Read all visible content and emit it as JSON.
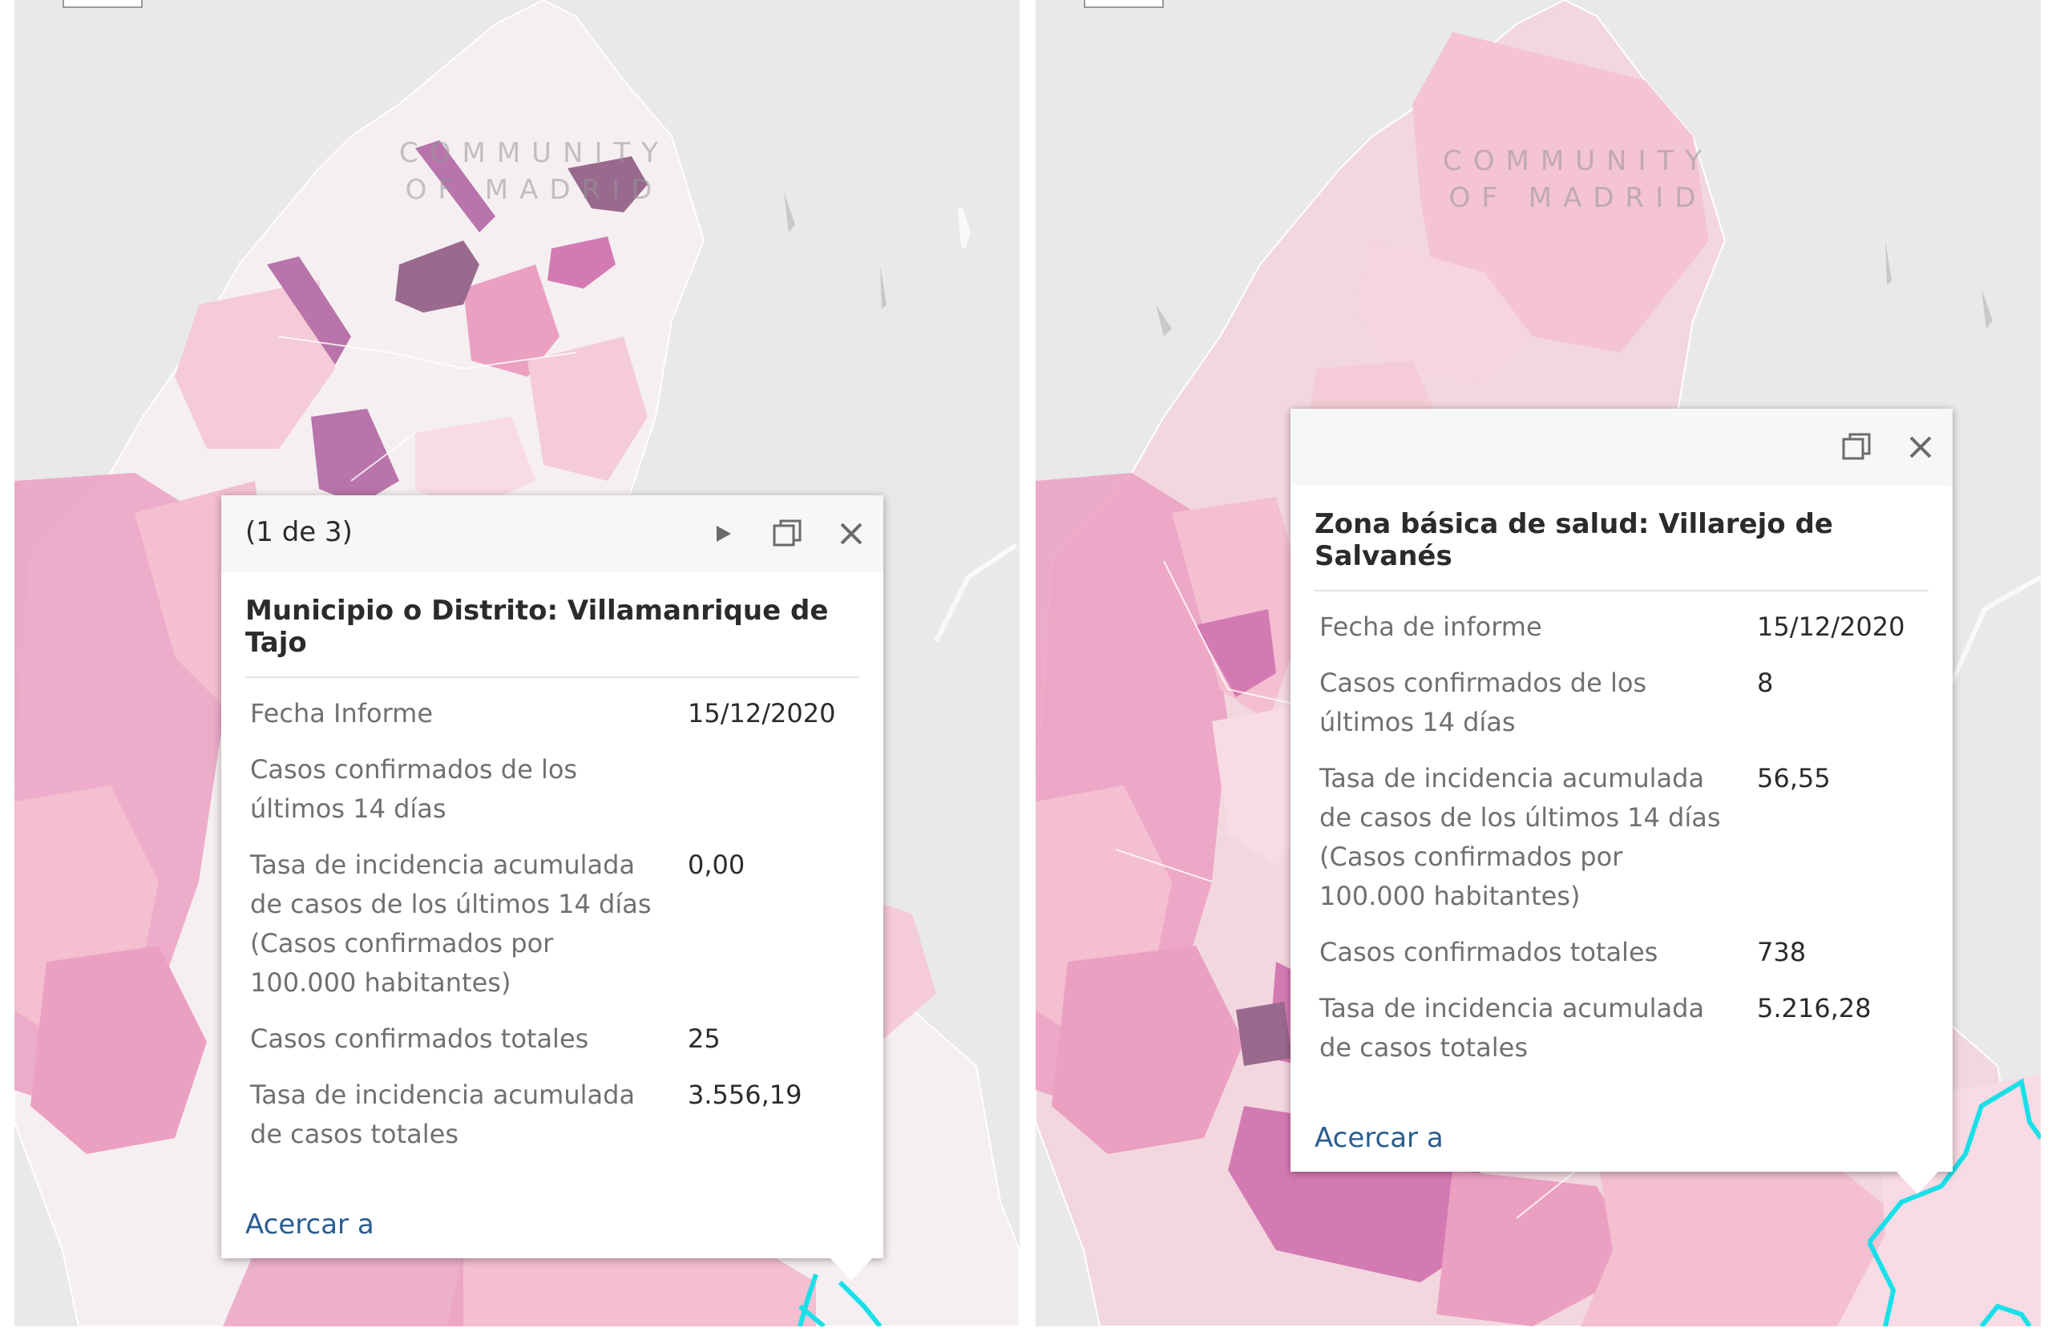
{
  "map": {
    "region_label_line1": "COMMUNITY",
    "region_label_line2": "OF MADRID",
    "colors": {
      "background": "#e9e9ea",
      "region_fill": "#f2d7df",
      "light": "#f5eff1",
      "pink_low": "#f4bfd0",
      "pink_mid": "#eba0c2",
      "magenta": "#d47ab3",
      "purple": "#9a6a8e",
      "boundary_highlight": "#19e0e8"
    }
  },
  "left_popup": {
    "page_indicator": "(1 de 3)",
    "title": "Municipio o Distrito: Villamanrique de Tajo",
    "fields": [
      {
        "label": "Fecha Informe",
        "value": "15/12/2020"
      },
      {
        "label": "Casos confirmados de los últimos 14 días",
        "value": ""
      },
      {
        "label": "Tasa de incidencia acumulada de casos de los últimos 14 días (Casos confirmados por 100.000 habitantes)",
        "value": "0,00"
      },
      {
        "label": "Casos confirmados totales",
        "value": "25"
      },
      {
        "label": "Tasa de incidencia acumulada de casos totales",
        "value": "3.556,19"
      }
    ],
    "zoom_link": "Acercar a",
    "icons": [
      "next-arrow-icon",
      "maximize-icon",
      "close-icon"
    ]
  },
  "right_popup": {
    "title": "Zona básica de salud: Villarejo de Salvanés",
    "fields": [
      {
        "label": "Fecha de informe",
        "value": "15/12/2020"
      },
      {
        "label": "Casos confirmados de los últimos 14 días",
        "value": "8"
      },
      {
        "label": "Tasa de incidencia acumulada de casos de los últimos 14 días (Casos confirmados por 100.000 habitantes)",
        "value": "56,55"
      },
      {
        "label": "Casos confirmados totales",
        "value": "738"
      },
      {
        "label": "Tasa de incidencia acumulada de casos totales",
        "value": "5.216,28"
      }
    ],
    "zoom_link": "Acercar a",
    "icons": [
      "maximize-icon",
      "close-icon"
    ]
  }
}
